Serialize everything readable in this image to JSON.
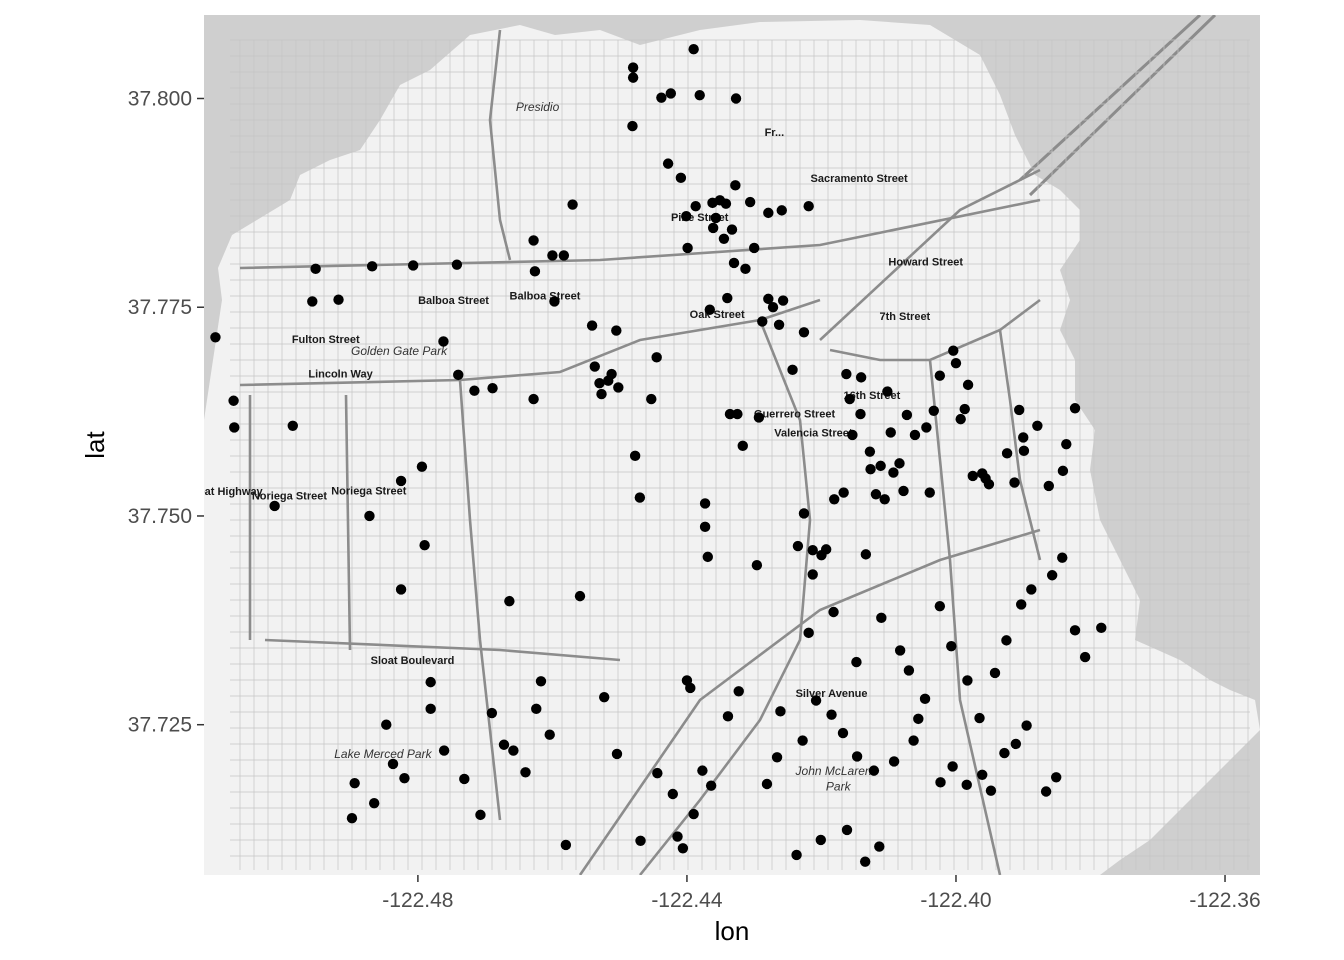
{
  "colors": {
    "panel_background": "#cfcfcf",
    "land": "#f2f2f2",
    "water": "#cfcfcf",
    "street_minor": "#c4c4c4",
    "street_major": "#8c8c8c",
    "point": "#000000",
    "tick_text": "#4d4d4d"
  },
  "map_labels": [
    {
      "text": "Presidio",
      "lon": -122.4622,
      "lat": 37.7985,
      "style": "italic"
    },
    {
      "text": "Pine Street",
      "lon": -122.4381,
      "lat": 37.7853,
      "style": "bold"
    },
    {
      "text": "Fulton Street",
      "lon": -122.4937,
      "lat": 37.7707,
      "style": "bold"
    },
    {
      "text": "Balboa Street",
      "lon": -122.4747,
      "lat": 37.7754,
      "style": "bold"
    },
    {
      "text": "Balboa Street",
      "lon": -122.4611,
      "lat": 37.7759,
      "style": "bold"
    },
    {
      "text": "Golden Gate Park",
      "lon": -122.4828,
      "lat": 37.7693,
      "style": "italic"
    },
    {
      "text": "Lincoln Way",
      "lon": -122.4915,
      "lat": 37.7666,
      "style": "bold"
    },
    {
      "text": "Oak Street",
      "lon": -122.4355,
      "lat": 37.7737,
      "style": "bold"
    },
    {
      "text": "Sacramento Street",
      "lon": -122.4144,
      "lat": 37.79,
      "style": "bold"
    },
    {
      "text": "Howard Street",
      "lon": -122.4045,
      "lat": 37.78,
      "style": "bold"
    },
    {
      "text": "7th Street",
      "lon": -122.4076,
      "lat": 37.7735,
      "style": "bold"
    },
    {
      "text": "16th Street",
      "lon": -122.4125,
      "lat": 37.764,
      "style": "bold"
    },
    {
      "text": "Guerrero Street",
      "lon": -122.424,
      "lat": 37.7618,
      "style": "bold"
    },
    {
      "text": "Valencia Street",
      "lon": -122.4212,
      "lat": 37.7595,
      "style": "bold"
    },
    {
      "text": "Noriega Street",
      "lon": -122.4991,
      "lat": 37.752,
      "style": "bold"
    },
    {
      "text": "Noriega Street",
      "lon": -122.4873,
      "lat": 37.7526,
      "style": "bold"
    },
    {
      "text": "Great Highway",
      "lon": -122.5088,
      "lat": 37.7525,
      "style": "bold"
    },
    {
      "text": "Sloat Boulevard",
      "lon": -122.4808,
      "lat": 37.7323,
      "style": "bold"
    },
    {
      "text": "Silver Avenue",
      "lon": -122.4185,
      "lat": 37.7283,
      "style": "bold"
    },
    {
      "text": "Lake Merced Park",
      "lon": -122.4852,
      "lat": 37.721,
      "style": "italic"
    },
    {
      "text": "John McLaren",
      "lon": -122.4182,
      "lat": 37.719,
      "style": "italic"
    },
    {
      "text": "Park",
      "lon": -122.4175,
      "lat": 37.7171,
      "style": "italic"
    },
    {
      "text": "Fr...",
      "lon": -122.427,
      "lat": 37.7955,
      "style": "bold"
    }
  ],
  "chart_data": {
    "type": "scatter",
    "xlabel": "lon",
    "ylabel": "lat",
    "xlim": [
      -122.5118,
      -122.3548
    ],
    "ylim": [
      37.707,
      37.81
    ],
    "x_ticks": [
      -122.48,
      -122.44,
      -122.4,
      -122.36
    ],
    "x_tick_labels": [
      "-122.48",
      "-122.44",
      "-122.40",
      "-122.36"
    ],
    "y_ticks": [
      37.725,
      37.75,
      37.775,
      37.8
    ],
    "y_tick_labels": [
      "37.725",
      "37.750",
      "37.775",
      "37.800"
    ],
    "grid": false,
    "points": [
      [
        -122.5101,
        37.7714
      ],
      [
        -122.5074,
        37.7638
      ],
      [
        -122.5073,
        37.7606
      ],
      [
        -122.5013,
        37.7512
      ],
      [
        -122.4986,
        37.7608
      ],
      [
        -122.4957,
        37.7757
      ],
      [
        -122.4952,
        37.7796
      ],
      [
        -122.4918,
        37.7759
      ],
      [
        -122.4872,
        37.75
      ],
      [
        -122.4868,
        37.7799
      ],
      [
        -122.4825,
        37.7412
      ],
      [
        -122.4825,
        37.7542
      ],
      [
        -122.4807,
        37.78
      ],
      [
        -122.4794,
        37.7559
      ],
      [
        -122.479,
        37.7465
      ],
      [
        -122.4762,
        37.7709
      ],
      [
        -122.4742,
        37.7801
      ],
      [
        -122.474,
        37.7669
      ],
      [
        -122.4716,
        37.765
      ],
      [
        -122.4689,
        37.7653
      ],
      [
        -122.4664,
        37.7398
      ],
      [
        -122.4628,
        37.783
      ],
      [
        -122.4628,
        37.764
      ],
      [
        -122.4626,
        37.7793
      ],
      [
        -122.46,
        37.7812
      ],
      [
        -122.4597,
        37.7757
      ],
      [
        -122.4583,
        37.7812
      ],
      [
        -122.457,
        37.7873
      ],
      [
        -122.4559,
        37.7404
      ],
      [
        -122.4541,
        37.7728
      ],
      [
        -122.4537,
        37.7679
      ],
      [
        -122.453,
        37.7659
      ],
      [
        -122.4527,
        37.7646
      ],
      [
        -122.4517,
        37.7662
      ],
      [
        -122.4512,
        37.767
      ],
      [
        -122.4505,
        37.7722
      ],
      [
        -122.4502,
        37.7654
      ],
      [
        -122.448,
        37.8025
      ],
      [
        -122.448,
        37.8037
      ],
      [
        -122.4481,
        37.7967
      ],
      [
        -122.4477,
        37.7572
      ],
      [
        -122.447,
        37.7522
      ],
      [
        -122.4453,
        37.764
      ],
      [
        -122.4445,
        37.769
      ],
      [
        -122.4438,
        37.8001
      ],
      [
        -122.4428,
        37.7922
      ],
      [
        -122.4424,
        37.8006
      ],
      [
        -122.4409,
        37.7905
      ],
      [
        -122.4401,
        37.7859
      ],
      [
        -122.4399,
        37.7821
      ],
      [
        -122.439,
        37.8059
      ],
      [
        -122.4387,
        37.7871
      ],
      [
        -122.4381,
        37.8004
      ],
      [
        -122.4373,
        37.7515
      ],
      [
        -122.4373,
        37.7487
      ],
      [
        -122.4369,
        37.7451
      ],
      [
        -122.4366,
        37.7747
      ],
      [
        -122.4362,
        37.7875
      ],
      [
        -122.4361,
        37.7845
      ],
      [
        -122.4357,
        37.7857
      ],
      [
        -122.4351,
        37.7878
      ],
      [
        -122.4345,
        37.7832
      ],
      [
        -122.4342,
        37.7874
      ],
      [
        -122.434,
        37.7761
      ],
      [
        -122.4336,
        37.7622
      ],
      [
        -122.4333,
        37.7843
      ],
      [
        -122.433,
        37.7803
      ],
      [
        -122.4328,
        37.7896
      ],
      [
        -122.4327,
        37.8
      ],
      [
        -122.4325,
        37.7622
      ],
      [
        -122.4317,
        37.7584
      ],
      [
        -122.4313,
        37.7796
      ],
      [
        -122.4306,
        37.7876
      ],
      [
        -122.43,
        37.7821
      ],
      [
        -122.4296,
        37.7441
      ],
      [
        -122.4293,
        37.7618
      ],
      [
        -122.4288,
        37.7733
      ],
      [
        -122.4279,
        37.776
      ],
      [
        -122.4279,
        37.7863
      ],
      [
        -122.4272,
        37.775
      ],
      [
        -122.4263,
        37.7729
      ],
      [
        -122.4259,
        37.7866
      ],
      [
        -122.4257,
        37.7758
      ],
      [
        -122.4243,
        37.7675
      ],
      [
        -122.4235,
        37.7464
      ],
      [
        -122.4226,
        37.772
      ],
      [
        -122.4226,
        37.7503
      ],
      [
        -122.4219,
        37.7871
      ],
      [
        -122.4213,
        37.7459
      ],
      [
        -122.4213,
        37.743
      ],
      [
        -122.42,
        37.7453
      ],
      [
        -122.4193,
        37.746
      ],
      [
        -122.4181,
        37.752
      ],
      [
        -122.4167,
        37.7528
      ],
      [
        -122.4163,
        37.767
      ],
      [
        -122.4158,
        37.764
      ],
      [
        -122.4154,
        37.7597
      ],
      [
        -122.4142,
        37.7622
      ],
      [
        -122.4141,
        37.7666
      ],
      [
        -122.4134,
        37.7454
      ],
      [
        -122.4128,
        37.7577
      ],
      [
        -122.4127,
        37.7556
      ],
      [
        -122.4119,
        37.7526
      ],
      [
        -122.4112,
        37.756
      ],
      [
        -122.4106,
        37.752
      ],
      [
        -122.4102,
        37.7649
      ],
      [
        -122.4097,
        37.76
      ],
      [
        -122.4093,
        37.7552
      ],
      [
        -122.4084,
        37.7563
      ],
      [
        -122.4078,
        37.753
      ],
      [
        -122.4073,
        37.7621
      ],
      [
        -122.4061,
        37.7597
      ],
      [
        -122.4044,
        37.7606
      ],
      [
        -122.4039,
        37.7528
      ],
      [
        -122.4033,
        37.7626
      ],
      [
        -122.4024,
        37.7668
      ],
      [
        -122.4004,
        37.7698
      ],
      [
        -122.4,
        37.7683
      ],
      [
        -122.3993,
        37.7616
      ],
      [
        -122.3987,
        37.7628
      ],
      [
        -122.3982,
        37.7657
      ],
      [
        -122.3975,
        37.7548
      ],
      [
        -122.3961,
        37.7551
      ],
      [
        -122.3956,
        37.7545
      ],
      [
        -122.3951,
        37.7538
      ],
      [
        -122.3924,
        37.7575
      ],
      [
        -122.3913,
        37.754
      ],
      [
        -122.3906,
        37.7627
      ],
      [
        -122.39,
        37.7594
      ],
      [
        -122.3899,
        37.7578
      ],
      [
        -122.3879,
        37.7608
      ],
      [
        -122.3862,
        37.7536
      ],
      [
        -122.3841,
        37.7554
      ],
      [
        -122.3836,
        37.7586
      ],
      [
        -122.3823,
        37.7629
      ],
      [
        -122.4219,
        37.736
      ],
      [
        -122.4182,
        37.7385
      ],
      [
        -122.4148,
        37.7325
      ],
      [
        -122.4111,
        37.7378
      ],
      [
        -122.4083,
        37.7339
      ],
      [
        -122.407,
        37.7315
      ],
      [
        -122.4056,
        37.7257
      ],
      [
        -122.4024,
        37.7392
      ],
      [
        -122.4007,
        37.7344
      ],
      [
        -122.3983,
        37.7303
      ],
      [
        -122.3965,
        37.7258
      ],
      [
        -122.3942,
        37.7312
      ],
      [
        -122.3925,
        37.7351
      ],
      [
        -122.3903,
        37.7394
      ],
      [
        -122.3888,
        37.7412
      ],
      [
        -122.3857,
        37.7429
      ],
      [
        -122.3842,
        37.745
      ],
      [
        -122.3823,
        37.7363
      ],
      [
        -122.3808,
        37.7331
      ],
      [
        -122.3784,
        37.7366
      ],
      [
        -122.4261,
        37.7266
      ],
      [
        -122.4228,
        37.7231
      ],
      [
        -122.4208,
        37.7279
      ],
      [
        -122.4185,
        37.7262
      ],
      [
        -122.4168,
        37.724
      ],
      [
        -122.4147,
        37.7212
      ],
      [
        -122.4122,
        37.7195
      ],
      [
        -122.4092,
        37.7206
      ],
      [
        -122.4063,
        37.7231
      ],
      [
        -122.4046,
        37.7281
      ],
      [
        -122.4023,
        37.7181
      ],
      [
        -122.4005,
        37.72
      ],
      [
        -122.3984,
        37.7178
      ],
      [
        -122.3961,
        37.719
      ],
      [
        -122.3948,
        37.7171
      ],
      [
        -122.3928,
        37.7216
      ],
      [
        -122.3911,
        37.7227
      ],
      [
        -122.3895,
        37.7249
      ],
      [
        -122.3866,
        37.717
      ],
      [
        -122.3851,
        37.7187
      ],
      [
        -122.44,
        37.7303
      ],
      [
        -122.4395,
        37.7294
      ],
      [
        -122.4377,
        37.7195
      ],
      [
        -122.4364,
        37.7177
      ],
      [
        -122.4339,
        37.726
      ],
      [
        -122.4323,
        37.729
      ],
      [
        -122.4281,
        37.7179
      ],
      [
        -122.4266,
        37.7211
      ],
      [
        -122.4237,
        37.7094
      ],
      [
        -122.4201,
        37.7112
      ],
      [
        -122.4162,
        37.7124
      ],
      [
        -122.4135,
        37.7086
      ],
      [
        -122.4114,
        37.7104
      ],
      [
        -122.4414,
        37.7116
      ],
      [
        -122.4406,
        37.7102
      ],
      [
        -122.439,
        37.7143
      ],
      [
        -122.4421,
        37.7167
      ],
      [
        -122.4444,
        37.7192
      ],
      [
        -122.4469,
        37.7111
      ],
      [
        -122.4504,
        37.7215
      ],
      [
        -122.4523,
        37.7283
      ],
      [
        -122.458,
        37.7106
      ],
      [
        -122.4624,
        37.7269
      ],
      [
        -122.464,
        37.7193
      ],
      [
        -122.4658,
        37.7219
      ],
      [
        -122.4672,
        37.7226
      ],
      [
        -122.469,
        37.7264
      ],
      [
        -122.4707,
        37.7142
      ],
      [
        -122.4731,
        37.7185
      ],
      [
        -122.4761,
        37.7219
      ],
      [
        -122.4781,
        37.7269
      ],
      [
        -122.4781,
        37.7301
      ],
      [
        -122.482,
        37.7186
      ],
      [
        -122.4837,
        37.7203
      ],
      [
        -122.4847,
        37.725
      ],
      [
        -122.4865,
        37.7156
      ],
      [
        -122.4894,
        37.718
      ],
      [
        -122.4898,
        37.7138
      ],
      [
        -122.4604,
        37.7238
      ],
      [
        -122.4617,
        37.7302
      ]
    ]
  }
}
